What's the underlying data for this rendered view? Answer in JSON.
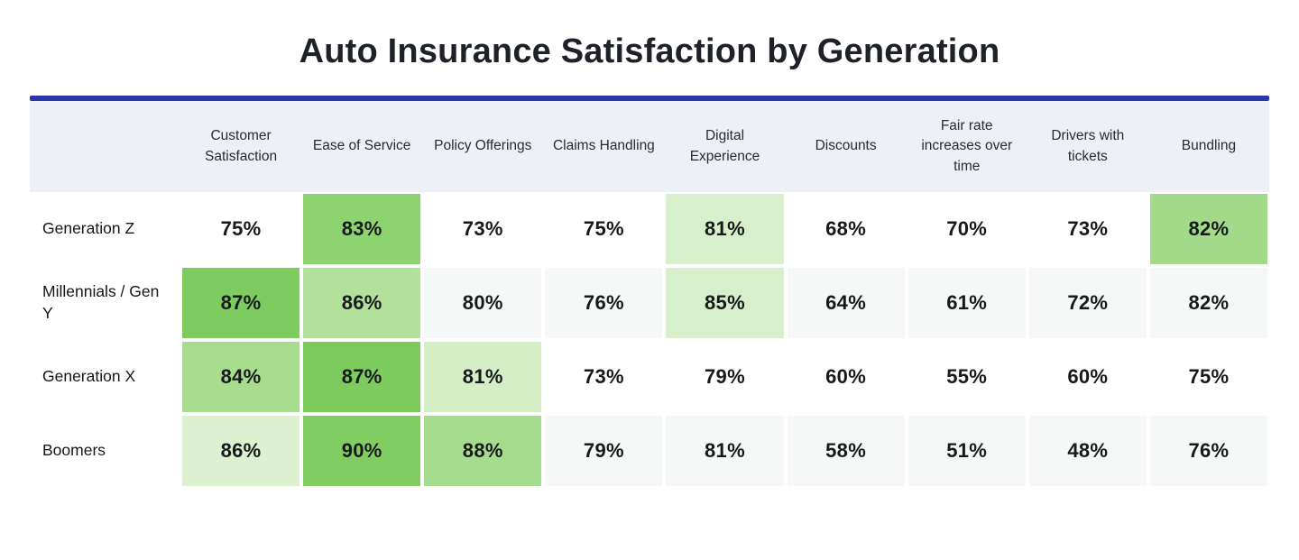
{
  "title": "Auto Insurance Satisfaction by Generation",
  "theme": {
    "accent_line_color": "#2a38ab",
    "header_band_bg": "#edf1f6",
    "striped_row_cell_bg": "#f6f7f7",
    "highlight_green_dark": "#7ecb5f",
    "highlight_green_medium": "#a6dc8d",
    "highlight_green_light": "#d8efcb"
  },
  "chart_data": {
    "type": "heatmap",
    "title": "Auto Insurance Satisfaction by Generation",
    "unit": "%",
    "columns": [
      "Customer Satisfaction",
      "Ease of Service",
      "Policy Offerings",
      "Claims Handling",
      "Digital Experience",
      "Discounts",
      "Fair rate increases over time",
      "Drivers with tickets",
      "Bundling"
    ],
    "rows": [
      {
        "label": "Generation Z",
        "values": [
          75,
          83,
          73,
          75,
          81,
          68,
          70,
          73,
          82
        ]
      },
      {
        "label": "Millennials / Gen Y",
        "values": [
          87,
          86,
          80,
          76,
          85,
          64,
          61,
          72,
          82
        ]
      },
      {
        "label": "Generation X",
        "values": [
          84,
          87,
          81,
          73,
          79,
          60,
          55,
          60,
          75
        ]
      },
      {
        "label": "Boomers",
        "values": [
          86,
          90,
          88,
          79,
          81,
          58,
          51,
          48,
          76
        ]
      }
    ],
    "highlight_rule": "top 3 values in each row shaded green; darker green = higher rank within row",
    "highlighted_cells": [
      {
        "row": "Generation Z",
        "column": "Ease of Service",
        "value": 83,
        "color": "#8dd36f"
      },
      {
        "row": "Generation Z",
        "column": "Digital Experience",
        "value": 81,
        "color": "#d8efcb"
      },
      {
        "row": "Generation Z",
        "column": "Bundling",
        "value": 82,
        "color": "#a3da89"
      },
      {
        "row": "Millennials / Gen Y",
        "column": "Customer Satisfaction",
        "value": 87,
        "color": "#7ecb5f"
      },
      {
        "row": "Millennials / Gen Y",
        "column": "Ease of Service",
        "value": 86,
        "color": "#b2e19c"
      },
      {
        "row": "Millennials / Gen Y",
        "column": "Digital Experience",
        "value": 85,
        "color": "#d8efcc"
      },
      {
        "row": "Generation X",
        "column": "Customer Satisfaction",
        "value": 84,
        "color": "#a8dd90"
      },
      {
        "row": "Generation X",
        "column": "Ease of Service",
        "value": 87,
        "color": "#7dcb5d"
      },
      {
        "row": "Generation X",
        "column": "Policy Offerings",
        "value": 81,
        "color": "#d5eec6"
      },
      {
        "row": "Boomers",
        "column": "Customer Satisfaction",
        "value": 86,
        "color": "#ddf0d0"
      },
      {
        "row": "Boomers",
        "column": "Ease of Service",
        "value": 90,
        "color": "#82cd62"
      },
      {
        "row": "Boomers",
        "column": "Policy Offerings",
        "value": 88,
        "color": "#a6dc8d"
      }
    ]
  },
  "table": {
    "columns": [
      "Customer Satisfaction",
      "Ease of Service",
      "Policy Offerings",
      "Claims Handling",
      "Digital Experience",
      "Discounts",
      "Fair rate increases over time",
      "Drivers with tickets",
      "Bundling"
    ],
    "rows": [
      {
        "label": "Generation Z",
        "cells": [
          {
            "v": "75%",
            "bg": null
          },
          {
            "v": "83%",
            "bg": "#8dd36f"
          },
          {
            "v": "73%",
            "bg": null
          },
          {
            "v": "75%",
            "bg": null
          },
          {
            "v": "81%",
            "bg": "#d8efcb"
          },
          {
            "v": "68%",
            "bg": null
          },
          {
            "v": "70%",
            "bg": null
          },
          {
            "v": "73%",
            "bg": null
          },
          {
            "v": "82%",
            "bg": "#a3da89"
          }
        ]
      },
      {
        "label": "Millennials / Gen Y",
        "cells": [
          {
            "v": "87%",
            "bg": "#7ecb5f"
          },
          {
            "v": "86%",
            "bg": "#b2e19c"
          },
          {
            "v": "80%",
            "bg": null
          },
          {
            "v": "76%",
            "bg": null
          },
          {
            "v": "85%",
            "bg": "#d8efcc"
          },
          {
            "v": "64%",
            "bg": null
          },
          {
            "v": "61%",
            "bg": null
          },
          {
            "v": "72%",
            "bg": null
          },
          {
            "v": "82%",
            "bg": null
          }
        ]
      },
      {
        "label": "Generation X",
        "cells": [
          {
            "v": "84%",
            "bg": "#a8dd90"
          },
          {
            "v": "87%",
            "bg": "#7dcb5d"
          },
          {
            "v": "81%",
            "bg": "#d5eec6"
          },
          {
            "v": "73%",
            "bg": null
          },
          {
            "v": "79%",
            "bg": null
          },
          {
            "v": "60%",
            "bg": null
          },
          {
            "v": "55%",
            "bg": null
          },
          {
            "v": "60%",
            "bg": null
          },
          {
            "v": "75%",
            "bg": null
          }
        ]
      },
      {
        "label": "Boomers",
        "cells": [
          {
            "v": "86%",
            "bg": "#ddf0d0"
          },
          {
            "v": "90%",
            "bg": "#82cd62"
          },
          {
            "v": "88%",
            "bg": "#a6dc8d"
          },
          {
            "v": "79%",
            "bg": null
          },
          {
            "v": "81%",
            "bg": null
          },
          {
            "v": "58%",
            "bg": null
          },
          {
            "v": "51%",
            "bg": null
          },
          {
            "v": "48%",
            "bg": null
          },
          {
            "v": "76%",
            "bg": null
          }
        ]
      }
    ]
  }
}
